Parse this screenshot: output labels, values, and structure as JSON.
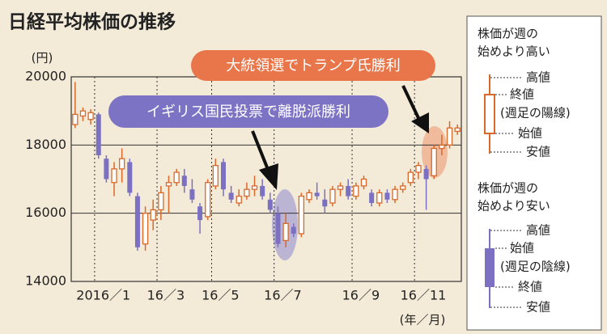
{
  "chart_data": {
    "type": "candlestick",
    "title": "日経平均株価の推移",
    "y_unit": "(円)",
    "x_unit": "(年／月)",
    "ylim": [
      14000,
      20000
    ],
    "yticks": [
      14000,
      16000,
      18000,
      20000
    ],
    "up_color": "#d9692a",
    "down_color": "#7b70c2",
    "categories": [
      null,
      null,
      null,
      "2016／1",
      null,
      null,
      null,
      null,
      null,
      null,
      null,
      "16／3",
      null,
      null,
      null,
      null,
      null,
      null,
      "16／5",
      null,
      null,
      null,
      null,
      null,
      null,
      null,
      "16／7",
      null,
      null,
      null,
      null,
      null,
      null,
      null,
      null,
      null,
      "16／9",
      null,
      null,
      null,
      null,
      null,
      null,
      null,
      "16／11",
      null,
      null,
      null,
      null,
      null
    ],
    "open": [
      18600,
      18850,
      18750,
      18900,
      17600,
      16900,
      17300,
      17500,
      16500,
      15100,
      15800,
      16100,
      16800,
      16900,
      17100,
      16700,
      16200,
      15900,
      16800,
      17500,
      16600,
      16300,
      16500,
      16700,
      16800,
      16400,
      16000,
      15200,
      15600,
      15400,
      16400,
      16600,
      16400,
      16300,
      16700,
      16800,
      16500,
      16800,
      16600,
      16300,
      16600,
      16400,
      16700,
      16900,
      17200,
      17300,
      17100,
      17900,
      18000,
      18400
    ],
    "high": [
      19850,
      19100,
      19050,
      18950,
      17700,
      17500,
      17900,
      17600,
      16600,
      16200,
      16400,
      16800,
      17100,
      17300,
      17300,
      17000,
      16300,
      17000,
      17600,
      17600,
      16800,
      16700,
      16900,
      17100,
      17000,
      16600,
      16200,
      16000,
      15700,
      16600,
      16700,
      16900,
      16700,
      16800,
      16900,
      17000,
      16900,
      17100,
      16700,
      16700,
      16700,
      16800,
      16900,
      17300,
      17500,
      17400,
      18000,
      18300,
      18700,
      18600
    ],
    "low": [
      18500,
      18700,
      18600,
      17600,
      16900,
      16500,
      16900,
      16500,
      14900,
      14900,
      15500,
      15800,
      16000,
      16800,
      16600,
      16300,
      15400,
      15800,
      16700,
      16500,
      16300,
      16200,
      16400,
      16500,
      16400,
      16000,
      15000,
      15000,
      15300,
      15300,
      16300,
      16400,
      16000,
      16200,
      16500,
      16400,
      16400,
      16700,
      16200,
      16200,
      16300,
      16300,
      16600,
      16800,
      17000,
      16100,
      17000,
      17700,
      17900,
      18300
    ],
    "close": [
      18900,
      19000,
      18950,
      17700,
      17000,
      17300,
      17600,
      16600,
      15000,
      16000,
      16100,
      16600,
      16900,
      17200,
      16800,
      16400,
      15800,
      16900,
      17400,
      16700,
      16400,
      16500,
      16700,
      16800,
      16500,
      16100,
      15100,
      15700,
      15400,
      16500,
      16600,
      16500,
      16200,
      16700,
      16800,
      16500,
      16800,
      17000,
      16300,
      16600,
      16400,
      16700,
      16800,
      17200,
      17400,
      17000,
      17900,
      18000,
      18500,
      18500
    ],
    "annotations": [
      "大統領選でトランプ氏勝利",
      "イギリス国民投票で離脱派勝利"
    ],
    "legend_box": {
      "up_title": [
        "株価が週の",
        "始めより高い"
      ],
      "up_labels": [
        "高値",
        "終値",
        "(週足の陽線)",
        "始値",
        "安値"
      ],
      "down_title": [
        "株価が週の",
        "始めより安い"
      ],
      "down_labels": [
        "高値",
        "始値",
        "(週足の陰線)",
        "終値",
        "安値"
      ]
    }
  }
}
